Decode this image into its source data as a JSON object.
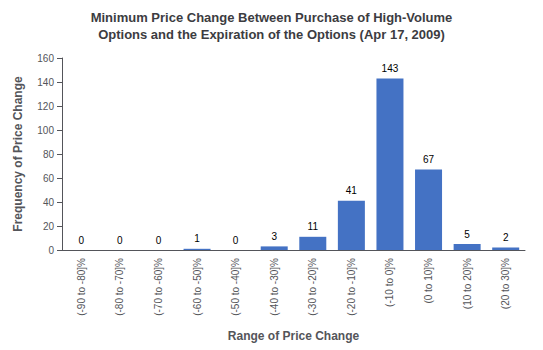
{
  "chart_data": {
    "type": "bar",
    "title": "Minimum Price Change Between Purchase of High-Volume\nOptions and the Expiration of the Options (Apr 17, 2009)",
    "xlabel": "Range of Price Change",
    "ylabel": "Frequency of Price Change",
    "categories": [
      "(-90 to -80]%",
      "(-80 to -70]%",
      "(-70 to -60]%",
      "(-60 to -50]%",
      "(-50 to -40]%",
      "(-40 to -30]%",
      "(-30 to -20]%",
      "(-20 to -10]%",
      "(-10 to 0]%",
      "(0 to 10]%",
      "(10 to 20]%",
      "(20 to 30]%"
    ],
    "values": [
      0,
      0,
      0,
      1,
      0,
      3,
      11,
      41,
      143,
      67,
      5,
      2
    ],
    "color": "#4472C4",
    "ylim": [
      0,
      160
    ],
    "yticks": [
      0,
      20,
      40,
      60,
      80,
      100,
      120,
      140,
      160
    ],
    "grid": false,
    "data_labels": true
  }
}
